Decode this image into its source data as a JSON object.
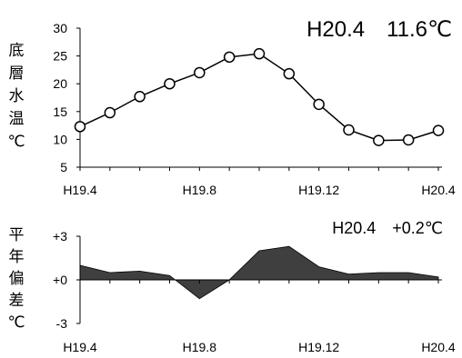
{
  "chart_data": [
    {
      "type": "line",
      "title": "H20.4　11.6℃",
      "ylabel": "底層水温℃",
      "x": [
        "H19.4",
        "H19.5",
        "H19.6",
        "H19.7",
        "H19.8",
        "H19.9",
        "H19.10",
        "H19.11",
        "H19.12",
        "H20.1",
        "H20.2",
        "H20.3",
        "H20.4"
      ],
      "xticklabels": [
        "H19.4",
        "H19.8",
        "H19.12",
        "H20.4"
      ],
      "yticks": [
        "5",
        "10",
        "15",
        "20",
        "25",
        "30"
      ],
      "ylim": [
        5,
        30
      ],
      "values": [
        12.3,
        14.8,
        17.7,
        20.0,
        22.0,
        24.8,
        25.4,
        21.8,
        16.3,
        11.7,
        9.8,
        9.9,
        11.6
      ],
      "markers": "circle"
    },
    {
      "type": "area",
      "title": "H20.4　+0.2℃",
      "ylabel": "平年偏差℃",
      "x": [
        "H19.4",
        "H19.5",
        "H19.6",
        "H19.7",
        "H19.8",
        "H19.9",
        "H19.10",
        "H19.11",
        "H19.12",
        "H20.1",
        "H20.2",
        "H20.3",
        "H20.4"
      ],
      "xticklabels": [
        "H19.4",
        "H19.8",
        "H19.12",
        "H20.4"
      ],
      "yticks": [
        "+3",
        "+0",
        "-3"
      ],
      "ylim": [
        -3,
        3
      ],
      "values": [
        1.0,
        0.5,
        0.6,
        0.3,
        -1.3,
        0.0,
        2.0,
        2.3,
        0.9,
        0.4,
        0.5,
        0.5,
        0.2
      ]
    }
  ]
}
